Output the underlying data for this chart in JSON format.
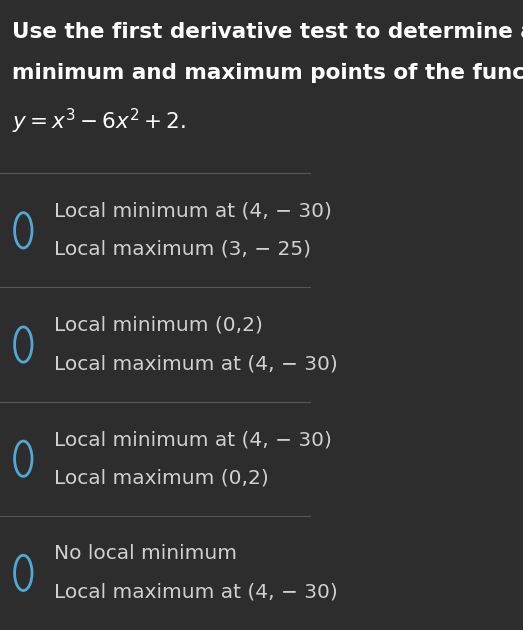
{
  "background_color": "#2d2d2d",
  "header_bg": "#2d2d2d",
  "divider_color": "#555555",
  "title_lines": [
    "Use the first derivative test to determine all local",
    "minimum and maximum points of the function"
  ],
  "formula": "y = x³−6x²+2.",
  "options": [
    [
      "Local minimum at (4, − 30)",
      "Local maximum (3, − 25)"
    ],
    [
      "Local minimum (0,2)",
      "Local maximum at (4, − 30)"
    ],
    [
      "Local minimum at (4, − 30)",
      "Local maximum (0,2)"
    ],
    [
      "No local minimum",
      "Local maximum at (4, − 30)"
    ]
  ],
  "title_color": "#ffffff",
  "option_color": "#d0d0d0",
  "circle_color": "#4fa8d5",
  "title_fontsize": 15.5,
  "formula_fontsize": 15.5,
  "option_fontsize": 14.5,
  "figsize": [
    5.23,
    6.3
  ],
  "dpi": 100
}
